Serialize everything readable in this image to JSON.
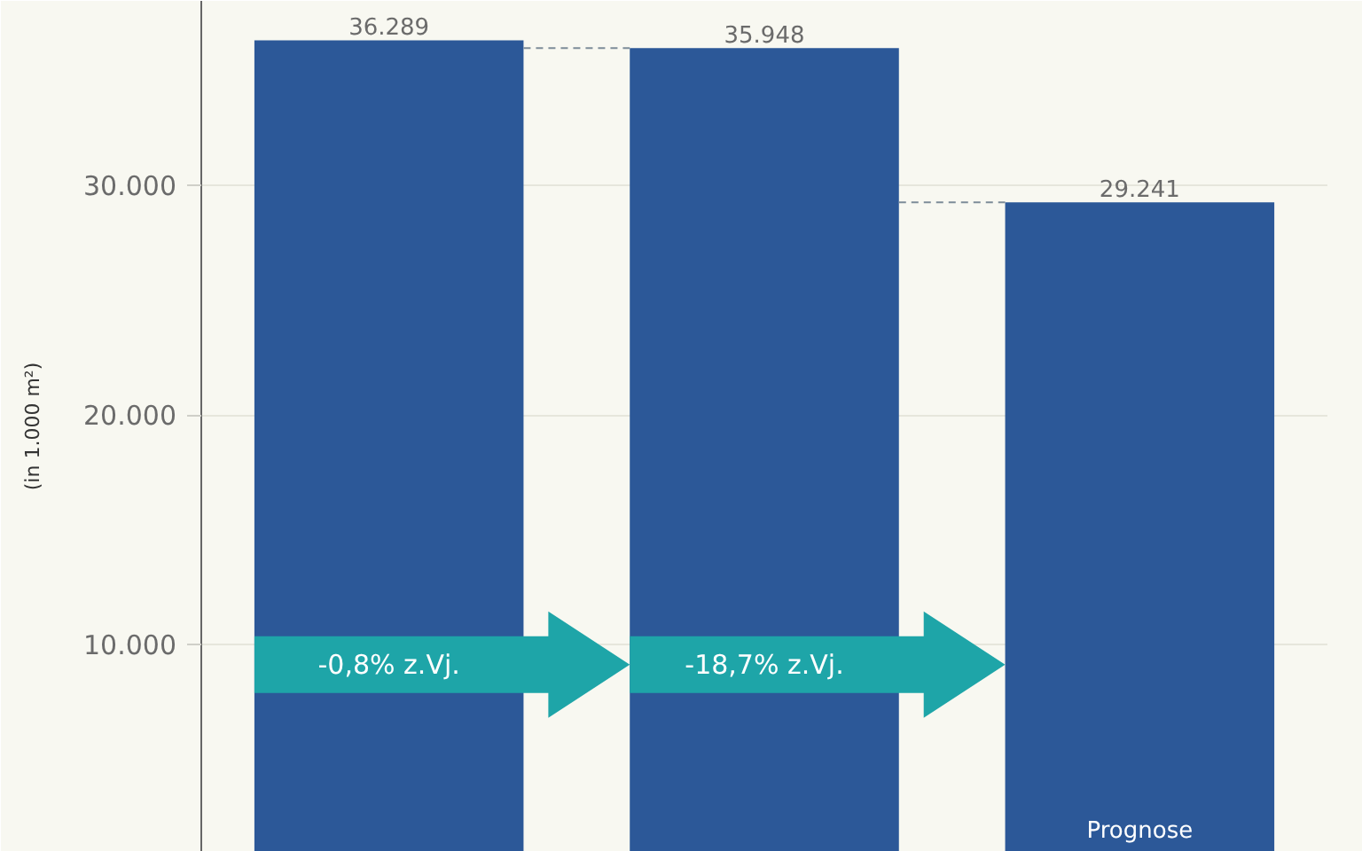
{
  "chart_data": {
    "type": "bar",
    "ylabel": "(in 1.000 m²)",
    "categories": [
      null,
      null,
      null
    ],
    "values": [
      36289,
      35948,
      29241
    ],
    "value_labels": [
      "36.289",
      "35.948",
      "29.241"
    ],
    "color": "#2c5898",
    "ylim": [
      1000,
      38000
    ],
    "yticks": [
      {
        "value": 10000,
        "label": "10.000"
      },
      {
        "value": 20000,
        "label": "20.000"
      },
      {
        "value": 30000,
        "label": "30.000"
      }
    ],
    "grid": "y",
    "tick_labels": "y",
    "ref_lines": [
      {
        "axis": "y",
        "value": 35948,
        "color": "#7d8c99",
        "line_style": "dashed"
      },
      {
        "axis": "y",
        "value": 29241,
        "color": "#7d8c99",
        "line_style": "dashed"
      }
    ],
    "annotations": [
      "-0,8% z.Vj.",
      "-18,7% z.Vj.",
      "Prognose"
    ]
  }
}
